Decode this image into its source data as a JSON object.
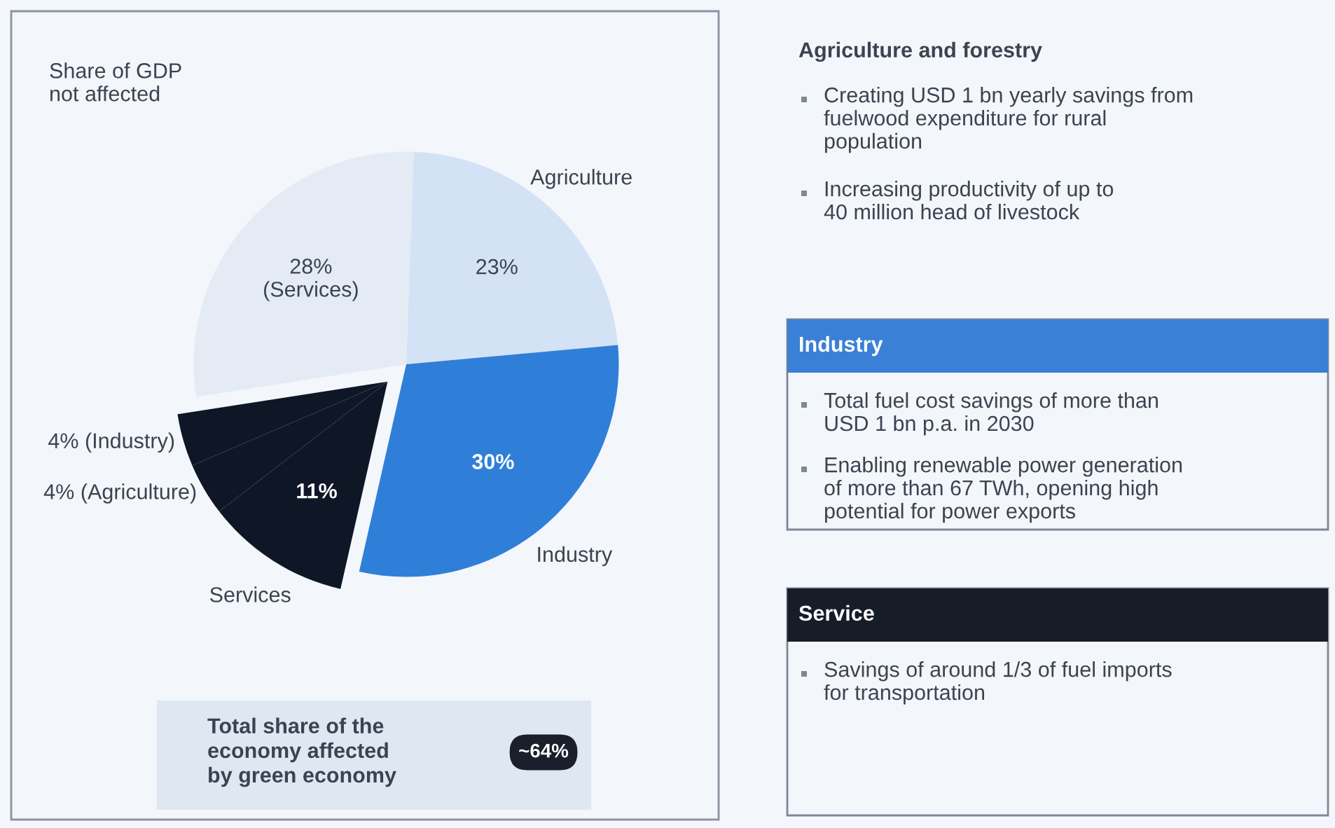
{
  "chart_data": [
    {
      "type": "pie",
      "categories": [
        "Agriculture",
        "Industry",
        "Services",
        null,
        null,
        null
      ],
      "values": [
        23,
        30,
        11,
        4,
        4,
        28
      ],
      "colors": [
        "#d3e2f5",
        "#2f7fd8",
        "#0f1626",
        "#0f1626",
        "#0f1626",
        "#e4ebf5"
      ],
      "value_labels": [
        "23%",
        "30%",
        "11%",
        "4% (Agriculture)",
        "4% (Industry)",
        "28%\n(Services)"
      ],
      "annotations": [
        "Share of GDP\nnot affected",
        "Total share of the\neconomy affected\nby green economy",
        "~64%"
      ]
    },
    {
      "type": "other",
      "title": "Agriculture and forestry",
      "color": null,
      "annotations": [
        "Creating USD 1 bn yearly savings from\nfuelwood expenditure for rural\npopulation",
        "Increasing productivity of up to\n40 million head of livestock"
      ]
    },
    {
      "type": "other",
      "title": "Industry",
      "color": "#3a80d6",
      "annotations": [
        "Total fuel cost savings of more than\nUSD 1 bn p.a. in 2030",
        "Enabling renewable power generation\nof more than 67 TWh, opening high\npotential for power exports"
      ]
    },
    {
      "type": "other",
      "title": "Service",
      "color": "#161c28",
      "annotations": [
        "Savings of around 1/3 of fuel imports\nfor transportation"
      ]
    }
  ]
}
